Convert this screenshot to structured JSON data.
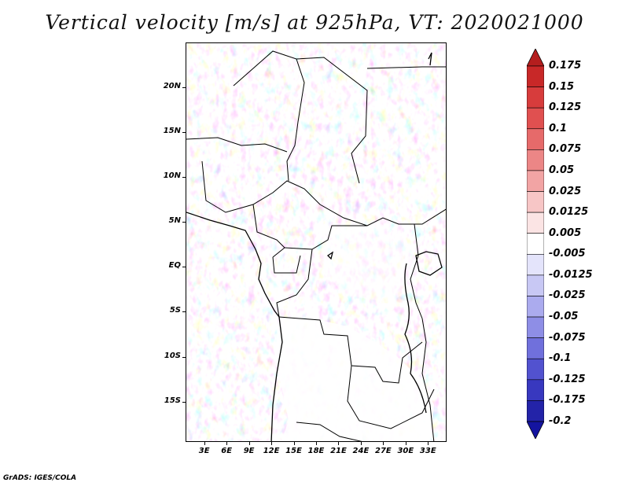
{
  "title": "Vertical velocity [m/s] at 925hPa, VT: 2020021000",
  "footer": "GrADS: IGES/COLA",
  "map": {
    "lat_labels": [
      "20N",
      "15N",
      "10N",
      "5N",
      "EQ",
      "5S",
      "10S",
      "15S"
    ],
    "lat_values": [
      20,
      15,
      10,
      5,
      0,
      -5,
      -10,
      -15
    ],
    "lon_labels": [
      "3E",
      "6E",
      "9E",
      "12E",
      "15E",
      "18E",
      "21E",
      "24E",
      "27E",
      "30E",
      "33E"
    ],
    "lon_values": [
      3,
      6,
      9,
      12,
      15,
      18,
      21,
      24,
      27,
      30,
      33
    ],
    "lon_range": [
      0.5,
      35.5
    ],
    "lat_range": [
      -19.5,
      25
    ]
  },
  "colorbar": {
    "labels": [
      "0.175",
      "0.15",
      "0.125",
      "0.1",
      "0.075",
      "0.05",
      "0.025",
      "0.0125",
      "0.005",
      "-0.005",
      "-0.0125",
      "-0.025",
      "-0.05",
      "-0.075",
      "-0.1",
      "-0.125",
      "-0.175",
      "-0.2"
    ],
    "colors": [
      "#b41e1e",
      "#c82828",
      "#d73c3c",
      "#e05050",
      "#e66a6a",
      "#ec8686",
      "#f2a4a4",
      "#f7c6c6",
      "#fbe4e4",
      "#ffffff",
      "#e4e4fb",
      "#c8c8f4",
      "#ababee",
      "#8e8ee6",
      "#7070dc",
      "#5252cf",
      "#3838bf",
      "#2323a8",
      "#1414a0"
    ]
  }
}
